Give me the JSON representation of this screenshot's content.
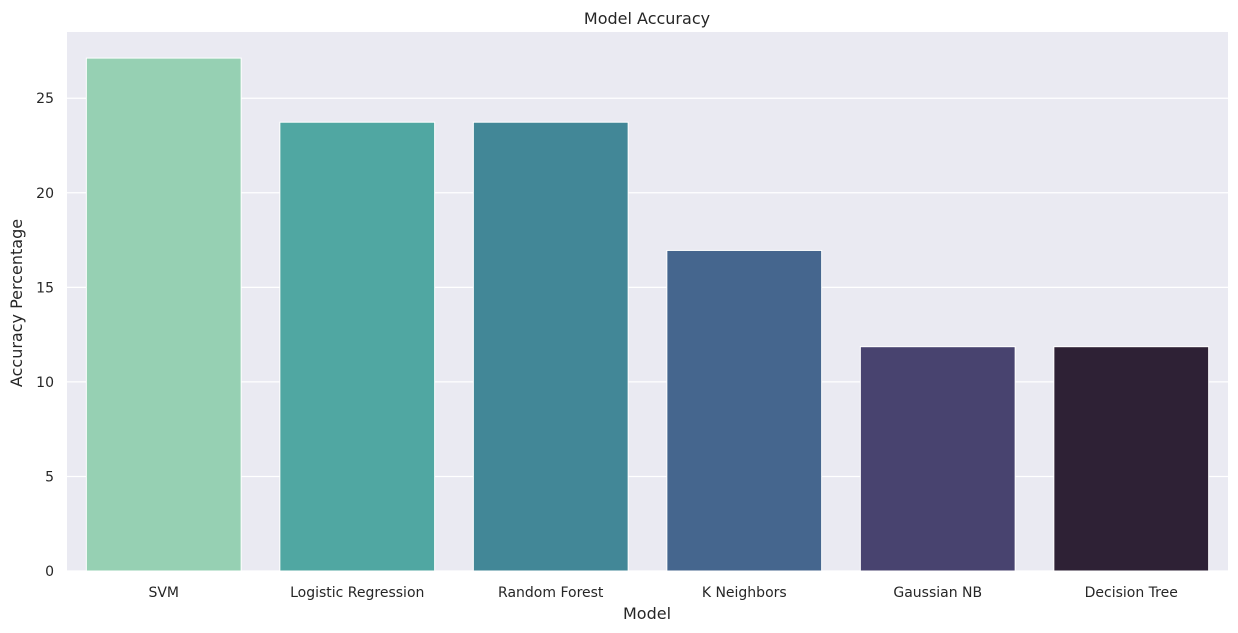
{
  "chart_data": {
    "type": "bar",
    "title": "Model Accuracy",
    "xlabel": "Model",
    "ylabel": "Accuracy Percentage",
    "categories": [
      "SVM",
      "Logistic Regression",
      "Random Forest",
      "K Neighbors",
      "Gaussian NB",
      "Decision Tree"
    ],
    "values": [
      27.12,
      23.73,
      23.73,
      16.95,
      11.86,
      11.86
    ],
    "colors": [
      "#96d0b3",
      "#50a7a2",
      "#428797",
      "#45668e",
      "#48436f",
      "#2e2135"
    ],
    "ylim": [
      0,
      28.5
    ],
    "yticks": [
      0,
      5,
      10,
      15,
      20,
      25
    ],
    "background": "#eaeaf2",
    "grid": true,
    "grid_color": "#ffffff"
  }
}
